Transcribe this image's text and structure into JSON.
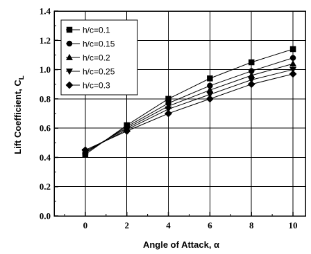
{
  "chart_data": {
    "type": "line",
    "xlabel": "Angle of Attack, α",
    "ylabel": "Lift Coefficient, C",
    "ylabel_subscript": "L",
    "xlim": [
      -1.5,
      10.6
    ],
    "ylim": [
      0.0,
      1.4
    ],
    "xticks": [
      0,
      2,
      4,
      6,
      8,
      10
    ],
    "yticks": [
      0.0,
      0.2,
      0.4,
      0.6,
      0.8,
      1.0,
      1.2,
      1.4
    ],
    "xtick_labels": [
      "0",
      "2",
      "4",
      "6",
      "8",
      "10"
    ],
    "ytick_labels": [
      "0.0",
      "0.2",
      "0.4",
      "0.6",
      "0.8",
      "1.0",
      "1.2",
      "1.4"
    ],
    "grid": true,
    "legend_position": "top-left",
    "x": [
      0,
      2,
      4,
      6,
      8,
      10
    ],
    "series": [
      {
        "name": "h/c=0.1",
        "marker": "square",
        "values": [
          0.42,
          0.62,
          0.8,
          0.94,
          1.05,
          1.14
        ]
      },
      {
        "name": "h/c=0.15",
        "marker": "circle",
        "values": [
          0.43,
          0.61,
          0.77,
          0.89,
          0.99,
          1.08
        ]
      },
      {
        "name": "h/c=0.2",
        "marker": "triangle-up",
        "values": [
          0.44,
          0.6,
          0.75,
          0.86,
          0.96,
          1.04
        ]
      },
      {
        "name": "h/c=0.25",
        "marker": "triangle-down",
        "values": [
          0.44,
          0.59,
          0.73,
          0.83,
          0.93,
          1.0
        ]
      },
      {
        "name": "h/c=0.3",
        "marker": "diamond",
        "values": [
          0.45,
          0.58,
          0.7,
          0.8,
          0.9,
          0.97
        ]
      }
    ],
    "colors": {
      "line": "#000000",
      "marker": "#000000",
      "background": "#ffffff"
    }
  }
}
